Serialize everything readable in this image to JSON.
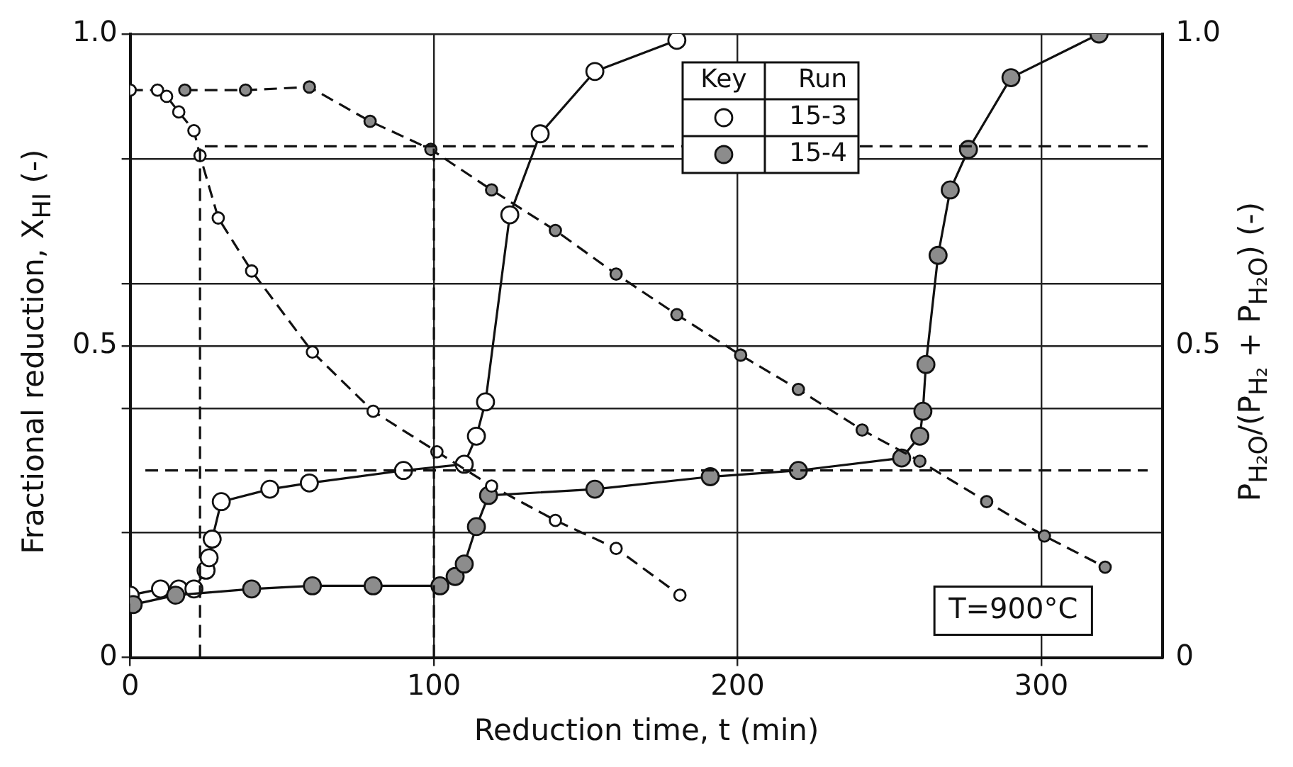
{
  "chart_data": {
    "type": "line",
    "xlabel": "Reduction time, t (min)",
    "ylabel": "Fractional reduction, X$_{HI}$ (-)",
    "y2label": "P$_{H₂O}$/(P$_{H₂}$ + P$_{H₂O}$) (-)",
    "legend_title": "Key",
    "legend": "top right",
    "grid": true,
    "marker": "circle",
    "line_style": "solid",
    "xlim": [
      0,
      340
    ],
    "xticks": [
      0,
      100,
      200,
      300
    ],
    "ylim": [
      0,
      1
    ],
    "yticks": [
      0,
      {
        "value": 0.2,
        "label": null
      },
      {
        "value": 0.4,
        "label": null
      },
      {
        "value": 0.5,
        "label": "0.5"
      },
      {
        "value": 0.6,
        "label": null
      },
      {
        "value": 0.8,
        "label": null
      },
      {
        "value": 1,
        "label": "1.0"
      }
    ],
    "y2lim": [
      0,
      1
    ],
    "y2ticks": [
      0,
      {
        "value": 0.5,
        "label": "0.5"
      },
      {
        "value": 1,
        "label": "1.0"
      }
    ],
    "annotations": [
      "Run",
      "T=900°C"
    ],
    "series": [
      {
        "name": "15-3",
        "color": "#ffffff",
        "x": [
          0,
          10,
          16,
          21,
          25,
          26,
          27,
          30,
          46,
          59,
          90,
          110,
          114,
          117,
          125,
          135,
          153,
          180
        ],
        "values": [
          0.1,
          0.11,
          0.11,
          0.11,
          0.14,
          0.16,
          0.19,
          0.25,
          0.27,
          0.28,
          0.3,
          0.31,
          0.355,
          0.41,
          0.71,
          0.84,
          0.94,
          0.99
        ]
      },
      {
        "name": "15-4",
        "color": "#8c8c8c",
        "x": [
          1,
          15,
          40,
          60,
          80,
          102,
          107,
          110,
          114,
          118,
          153,
          191,
          220,
          254,
          260,
          261,
          262,
          266,
          270,
          276,
          290,
          319
        ],
        "values": [
          0.085,
          0.1,
          0.11,
          0.115,
          0.115,
          0.115,
          0.13,
          0.15,
          0.21,
          0.26,
          0.27,
          0.29,
          0.3,
          0.32,
          0.355,
          0.395,
          0.47,
          0.645,
          0.75,
          0.815,
          0.93,
          1.0
        ]
      },
      {
        "axis": "y2",
        "line_style": "dashed",
        "color": "#ffffff",
        "x": [
          0,
          9,
          12,
          16,
          21,
          23,
          29,
          40,
          60,
          80,
          101,
          119,
          140,
          160,
          181
        ],
        "values": [
          0.91,
          0.91,
          0.9,
          0.875,
          0.845,
          0.805,
          0.705,
          0.62,
          0.49,
          0.395,
          0.33,
          0.275,
          0.22,
          0.175,
          0.1
        ]
      },
      {
        "axis": "y2",
        "line_style": "dashed",
        "color": "#8c8c8c",
        "x": [
          18,
          38,
          59,
          79,
          99,
          119,
          140,
          160,
          180,
          201,
          220,
          241,
          260,
          282,
          301,
          321
        ],
        "values": [
          0.91,
          0.91,
          0.915,
          0.86,
          0.815,
          0.75,
          0.685,
          0.615,
          0.55,
          0.485,
          0.43,
          0.365,
          0.315,
          0.25,
          0.195,
          0.145
        ]
      },
      {
        "marker": "none",
        "line_style": "dashed",
        "color": "#111111",
        "x": [
          23,
          23,
          335
        ],
        "values": [
          0,
          0.82,
          0.82
        ]
      },
      {
        "marker": "none",
        "line_style": "dashed",
        "color": "#111111",
        "x": [
          100,
          100
        ],
        "values": [
          0,
          0.82
        ]
      },
      {
        "marker": "none",
        "line_style": "dashed",
        "color": "#111111",
        "x": [
          5,
          335
        ],
        "values": [
          0.3,
          0.3
        ]
      }
    ]
  }
}
